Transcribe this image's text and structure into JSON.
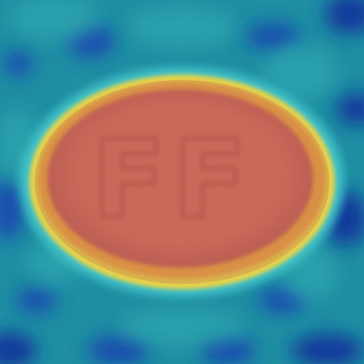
{
  "image": {
    "kind": "heatmap-overlay",
    "subject": "oval-tablet",
    "imprint_text": "FF"
  },
  "colors": {
    "background_teal": "#1f8fa3",
    "background_teal_light": "#2ea8b0",
    "cold_blue": "#1a3fb0",
    "deep_blue": "#12289a",
    "halo_cyan": "#43c3c8",
    "rim_yellow": "#e6d24a",
    "rim_orange": "#e8a23e",
    "core_red": "#d26c5a",
    "core_red_dark": "#b9574c",
    "imprint_shadow": "#a94d45"
  }
}
